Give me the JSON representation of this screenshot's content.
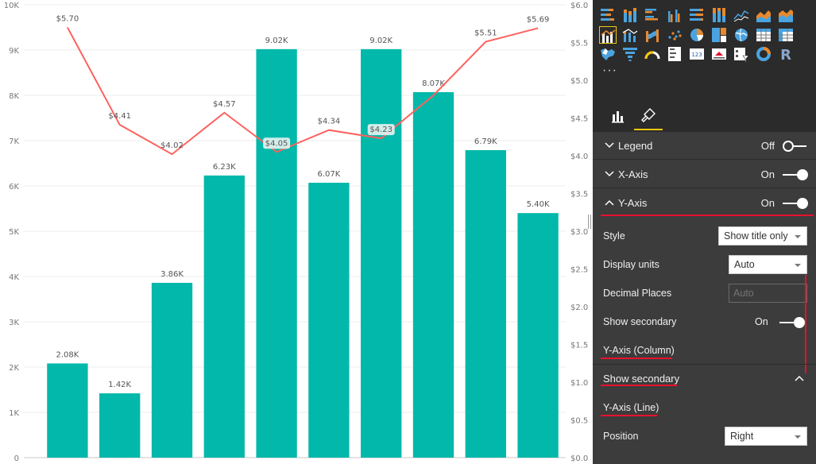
{
  "chart_data": {
    "type": "bar",
    "categories": [
      "",
      "",
      "",
      "",
      "",
      "",
      "",
      "",
      "",
      ""
    ],
    "series": [
      {
        "type": "bar",
        "values": [
          2080,
          1420,
          3860,
          6230,
          9020,
          6070,
          9020,
          8070,
          6790,
          5400
        ],
        "labels": [
          "2.08K",
          "1.42K",
          "3.86K",
          "6.23K",
          "9.02K",
          "6.07K",
          "9.02K",
          "8.07K",
          "6.79K",
          "5.40K"
        ],
        "color": "#01b8aa"
      },
      {
        "type": "line",
        "axis": "secondary",
        "values": [
          5.7,
          4.41,
          4.02,
          4.57,
          4.05,
          4.34,
          4.23,
          4.8,
          5.51,
          5.69
        ],
        "labels": [
          "$5.70",
          "$4.41",
          "$4.02",
          "$4.57",
          "$4.05",
          "$4.34",
          "$4.23",
          "",
          "$5.51",
          "$5.69"
        ],
        "color": "#fd625e"
      }
    ],
    "ylim": [
      0,
      10000
    ],
    "y_ticks": [
      "0",
      "1K",
      "2K",
      "3K",
      "4K",
      "5K",
      "6K",
      "7K",
      "8K",
      "9K",
      "10K"
    ],
    "y2lim": [
      0,
      6.0
    ],
    "y2_ticks": [
      "$0.0",
      "$0.5",
      "$1.0",
      "$1.5",
      "$2.0",
      "$2.5",
      "$3.0",
      "$3.5",
      "$4.0",
      "$4.5",
      "$5.0",
      "$5.5",
      "$6.0"
    ],
    "grid": true,
    "legend": "none"
  },
  "viz_gallery": {
    "rows": [
      [
        "stacked-bar-icon",
        "stacked-column-icon",
        "clustered-bar-icon",
        "clustered-column-icon",
        "100-stacked-bar-icon",
        "100-stacked-column-icon",
        "line-chart-icon",
        "area-chart-icon",
        "stacked-area-icon"
      ],
      [
        "line-clustered-column-icon",
        "line-stacked-column-icon",
        "ribbon-chart-icon",
        "scatter-chart-icon",
        "pie-chart-icon",
        "treemap-icon",
        "map-icon",
        "table-icon",
        "matrix-icon"
      ],
      [
        "filled-map-icon",
        "funnel-icon",
        "gauge-icon",
        "multi-row-card-icon",
        "card-icon",
        "kpi-icon",
        "slicer-icon",
        "donut-icon",
        "r-visual-icon"
      ]
    ],
    "selected": "line-clustered-column-icon",
    "more": "···",
    "r_letter": "R",
    "card_text": "123"
  },
  "tabs": [
    "fields-tab",
    "format-tab"
  ],
  "sections": {
    "legend": {
      "title": "Legend",
      "state": "Off"
    },
    "x_axis": {
      "title": "X-Axis",
      "state": "On"
    },
    "y_axis": {
      "title": "Y-Axis",
      "state": "On"
    }
  },
  "y_axis_props": {
    "style_label": "Style",
    "style_value": "Show title only",
    "units_label": "Display units",
    "units_value": "Auto",
    "decimals_label": "Decimal Places",
    "decimals_placeholder": "Auto",
    "secondary_label": "Show secondary",
    "secondary_state": "On",
    "column_header": "Y-Axis (Column)"
  },
  "show_secondary": {
    "title": "Show secondary",
    "line_header": "Y-Axis (Line)",
    "position_label": "Position",
    "position_value": "Right"
  },
  "colors": {
    "accent": "#f2c80f",
    "highlight": "#e8112d",
    "bar": "#01b8aa",
    "line": "#fd625e"
  }
}
